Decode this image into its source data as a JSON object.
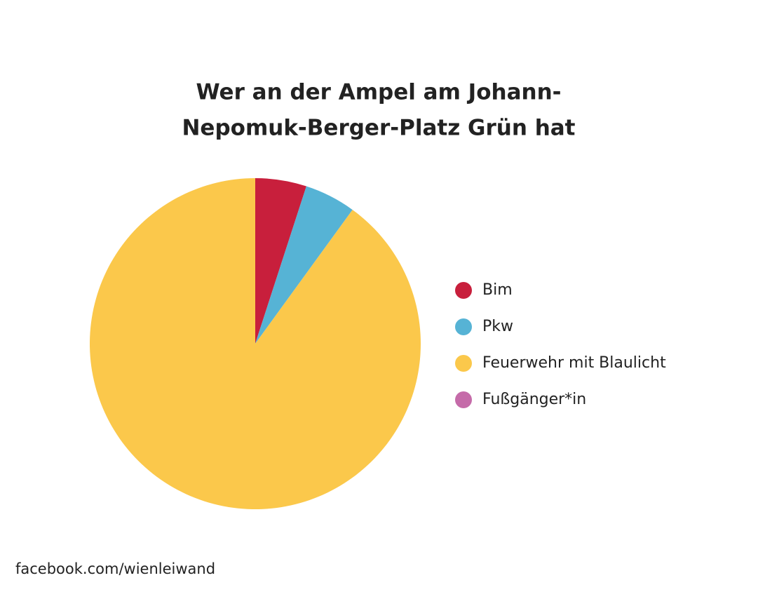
{
  "chart_data": {
    "type": "pie",
    "title": [
      "Wer an der Ampel am Johann-",
      "Nepomuk-Berger-Platz Grün hat"
    ],
    "categories": [
      "Bim",
      "Pkw",
      "Feuerwehr mit Blaulicht",
      "Fußgänger*in"
    ],
    "values": [
      5,
      5,
      90,
      0
    ],
    "colors": [
      "#c81f3c",
      "#56b3d5",
      "#fbc84b",
      "#c56ba9"
    ],
    "source": "facebook.com/wienleiwand"
  }
}
